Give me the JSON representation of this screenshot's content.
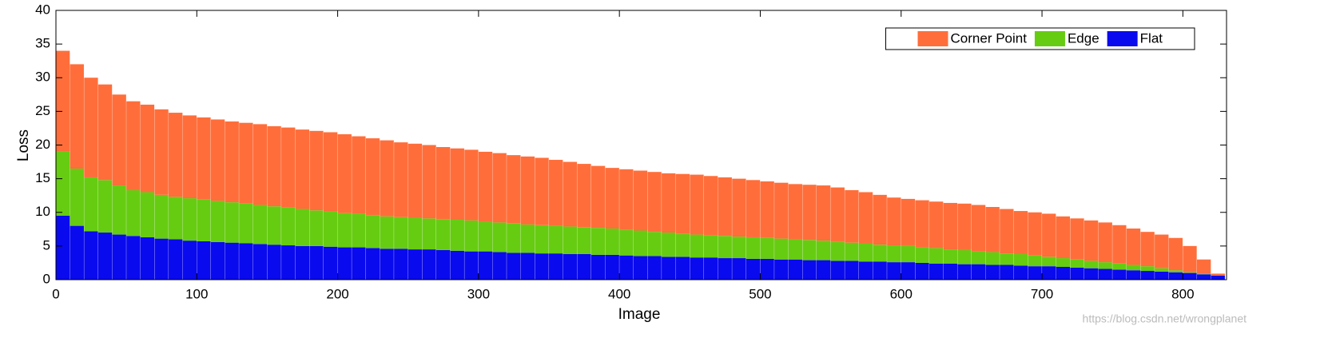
{
  "chart_data": {
    "type": "stacked_bar",
    "xlabel": "Image",
    "ylabel": "Loss",
    "watermark": "https://blog.csdn.net/wrongplanet",
    "legend": "top-right",
    "xlim": [
      0,
      831
    ],
    "xticks": [
      0,
      100,
      200,
      300,
      400,
      500,
      600,
      700,
      800
    ],
    "ylim": [
      0,
      40
    ],
    "yticks": [
      0,
      5,
      10,
      15,
      20,
      25,
      30,
      35,
      40
    ],
    "x": [
      5,
      15,
      25,
      35,
      45,
      55,
      65,
      75,
      85,
      95,
      105,
      115,
      125,
      135,
      145,
      155,
      165,
      175,
      185,
      195,
      205,
      215,
      225,
      235,
      245,
      255,
      265,
      275,
      285,
      295,
      305,
      315,
      325,
      335,
      345,
      355,
      365,
      375,
      385,
      395,
      405,
      415,
      425,
      435,
      445,
      455,
      465,
      475,
      485,
      495,
      505,
      515,
      525,
      535,
      545,
      555,
      565,
      575,
      585,
      595,
      605,
      615,
      625,
      635,
      645,
      655,
      665,
      675,
      685,
      695,
      705,
      715,
      725,
      735,
      745,
      755,
      765,
      775,
      785,
      795,
      805,
      815,
      825
    ],
    "series": [
      {
        "name": "Corner Point",
        "color": "#ff6e3a",
        "values": [
          15,
          15.5,
          14.8,
          14.2,
          13.5,
          13.2,
          13,
          12.7,
          12.5,
          12.3,
          12.2,
          12.1,
          12,
          12,
          12,
          11.9,
          11.9,
          11.8,
          11.8,
          11.8,
          11.7,
          11.5,
          11.4,
          11.3,
          11.1,
          11,
          10.9,
          10.7,
          10.6,
          10.5,
          10.4,
          10.3,
          10.1,
          10.1,
          10,
          9.8,
          9.6,
          9.4,
          9.2,
          9,
          9,
          8.9,
          8.9,
          8.8,
          8.9,
          8.9,
          8.8,
          8.7,
          8.6,
          8.5,
          8.4,
          8.3,
          8.2,
          8.2,
          8.2,
          8.1,
          7.8,
          7.6,
          7.4,
          7.1,
          7,
          7,
          6.9,
          6.9,
          6.9,
          6.9,
          6.7,
          6.6,
          6.4,
          6.4,
          6.4,
          6.2,
          6.1,
          6,
          5.9,
          5.7,
          5.4,
          5.1,
          5,
          4.8,
          3.9,
          2.1,
          0.3
        ]
      },
      {
        "name": "Edge",
        "color": "#66cc11",
        "values": [
          9.5,
          8.5,
          8,
          7.8,
          7.3,
          6.8,
          6.7,
          6.5,
          6.3,
          6.3,
          6.2,
          6.1,
          6,
          5.9,
          5.8,
          5.7,
          5.6,
          5.5,
          5.3,
          5.2,
          5.1,
          5,
          4.9,
          4.8,
          4.7,
          4.7,
          4.6,
          4.6,
          4.6,
          4.6,
          4.4,
          4.4,
          4.4,
          4.2,
          4.2,
          4.1,
          4.1,
          4,
          4,
          3.9,
          3.8,
          3.8,
          3.6,
          3.6,
          3.4,
          3.4,
          3.3,
          3.3,
          3.2,
          3.2,
          3.1,
          3.1,
          3,
          3,
          2.9,
          2.8,
          2.7,
          2.7,
          2.5,
          2.5,
          2.4,
          2.3,
          2.3,
          2.1,
          2.1,
          1.9,
          1.9,
          1.7,
          1.7,
          1.6,
          1.4,
          1.3,
          1.2,
          1.1,
          1,
          0.9,
          0.8,
          0.7,
          0.5,
          0.3,
          0.1,
          0.1,
          0
        ]
      },
      {
        "name": "Flat",
        "color": "#0a0aee",
        "values": [
          9.5,
          8,
          7.2,
          7,
          6.7,
          6.5,
          6.3,
          6.1,
          6,
          5.8,
          5.7,
          5.6,
          5.5,
          5.4,
          5.3,
          5.2,
          5.1,
          5,
          5,
          4.9,
          4.8,
          4.8,
          4.7,
          4.6,
          4.6,
          4.5,
          4.5,
          4.4,
          4.3,
          4.2,
          4.2,
          4.1,
          4,
          4,
          3.9,
          3.9,
          3.8,
          3.8,
          3.7,
          3.7,
          3.6,
          3.5,
          3.5,
          3.4,
          3.4,
          3.3,
          3.3,
          3.2,
          3.2,
          3.1,
          3.1,
          3,
          3,
          2.9,
          2.9,
          2.8,
          2.8,
          2.7,
          2.7,
          2.6,
          2.6,
          2.5,
          2.4,
          2.4,
          2.3,
          2.3,
          2.2,
          2.2,
          2.1,
          2,
          2,
          1.9,
          1.8,
          1.7,
          1.6,
          1.5,
          1.4,
          1.3,
          1.2,
          1.1,
          1,
          0.8,
          0.6
        ]
      }
    ]
  }
}
